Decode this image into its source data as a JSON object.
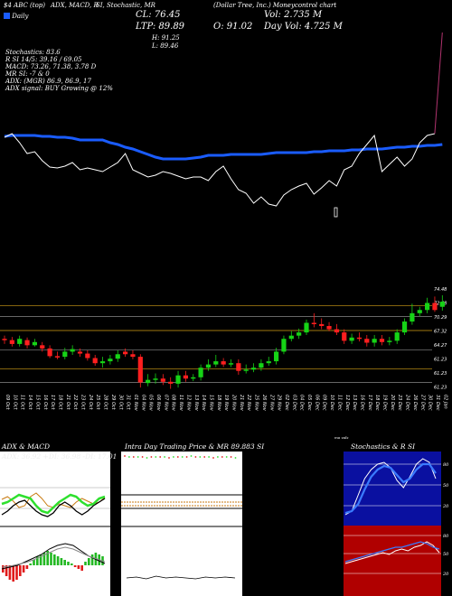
{
  "header": {
    "top_labels": [
      "$4 ABC (top)",
      "ADX, MACD, R",
      "SI, Stochastic, MR",
      "(Dollar Tree, Inc.) Moneycontrol chart"
    ],
    "box_prefix": "Daily",
    "cl": "CL: 76.45",
    "vol": "Vol: 2.735 M",
    "ltp": "LTP: 89.89",
    "open": "O: 91.02",
    "day_vol": "Day Vol: 4.725 M",
    "high": "H: 91.25",
    "low": "L: 89.46"
  },
  "indicators": [
    "Stochastics: 83.6",
    "R            SI 14/5: 39.16 / 69.05",
    "MACD: 73.26,  71.38,  3.78 D",
    "MR            SI: -7 & 0",
    "ADX:             (MGR) 86.9,  86.9,  17",
    "ADX  signal:                    BUY Growing @ 12%"
  ],
  "right_price_ticks": [
    "74.48",
    "72.48",
    "70.29",
    "67.32",
    "64.27",
    "61.23",
    "61.23",
    "61.23"
  ],
  "date_labels": [
    "09 Oct",
    "10 Oct",
    "11 Oct",
    "14 Oct",
    "15 Oct",
    "16 Oct",
    "17 Oct",
    "18 Oct",
    "21 Oct",
    "22 Oct",
    "23 Oct",
    "24 Oct",
    "25 Oct",
    "28 Oct",
    "29 Oct",
    "30 Oct",
    "31 Oct",
    "01 Nov",
    "04 Nov",
    "05 Nov",
    "06 Nov",
    "07 Nov",
    "08 Nov",
    "11 Nov",
    "12 Nov",
    "13 Nov",
    "14 Nov",
    "15 Nov",
    "18 Nov",
    "19 Nov",
    "20 Nov",
    "21 Nov",
    "22 Nov",
    "25 Nov",
    "26 Nov",
    "27 Nov",
    "29 Nov",
    "02 Dec",
    "03 Dec",
    "04 Dec",
    "05 Dec",
    "06 Dec",
    "09 Dec",
    "10 Dec",
    "11 Dec",
    "12 Dec",
    "13 Dec",
    "16 Dec",
    "17 Dec",
    "18 Dec",
    "19 Dec",
    "20 Dec",
    "23 Dec",
    "24 Dec",
    "26 Dec",
    "27 Dec",
    "30 Dec",
    "31 Dec",
    "02 Jan"
  ],
  "mini_note": "ma vals",
  "panels": {
    "adx": {
      "title": "ADX  & MACD",
      "values": "ADX: 36.92  +DI: 36.98  -DI: 17.01"
    },
    "intraday": {
      "title": "Intra Day Trading Price  &  MR   89.883   SI",
      "bottom_label": "0",
      "mid_label": "-7"
    },
    "stoch": {
      "title": "Stochastics & R          SI",
      "ticks_top": [
        "80",
        "50",
        "20"
      ],
      "ticks_bottom": [
        "80",
        "50",
        "20"
      ]
    }
  },
  "chart_data": [
    {
      "type": "line",
      "title": "",
      "series": [
        {
          "values": [
            151,
            150,
            150,
            150,
            150,
            151,
            151,
            152,
            152,
            153,
            155,
            155,
            155,
            155,
            158,
            160,
            163,
            165,
            168,
            171,
            174,
            176,
            176,
            176,
            176,
            175,
            174,
            172,
            172,
            172,
            171,
            171,
            171,
            171,
            171,
            170,
            169,
            169,
            169,
            169,
            169,
            168,
            168,
            167,
            167,
            167,
            166,
            166,
            165,
            165,
            165,
            164,
            163,
            163,
            162,
            162,
            161,
            161,
            160
          ]
        },
        {
          "values": [
            152,
            148,
            158,
            170,
            168,
            178,
            185,
            186,
            184,
            180,
            188,
            186,
            188,
            190,
            185,
            180,
            170,
            188,
            192,
            196,
            194,
            190,
            192,
            195,
            198,
            196,
            196,
            200,
            190,
            184,
            198,
            210,
            214,
            225,
            218,
            226,
            228,
            216,
            210,
            206,
            203,
            215,
            208,
            200,
            206,
            188,
            184,
            170,
            160,
            150,
            190,
            182,
            174,
            184,
            176,
            158,
            150,
            148,
            36
          ]
        }
      ]
    },
    {
      "type": "candlestick",
      "title": "",
      "x": [
        "09 Oct",
        "10 Oct",
        "11 Oct",
        "14 Oct",
        "15 Oct",
        "16 Oct",
        "17 Oct",
        "18 Oct",
        "21 Oct",
        "22 Oct",
        "23 Oct",
        "24 Oct",
        "25 Oct",
        "28 Oct",
        "29 Oct",
        "30 Oct",
        "31 Oct",
        "01 Nov",
        "04 Nov",
        "05 Nov",
        "06 Nov",
        "07 Nov",
        "08 Nov",
        "11 Nov",
        "12 Nov",
        "13 Nov",
        "14 Nov",
        "15 Nov",
        "18 Nov",
        "19 Nov",
        "20 Nov",
        "21 Nov",
        "22 Nov",
        "25 Nov",
        "26 Nov",
        "27 Nov",
        "29 Nov",
        "02 Dec",
        "03 Dec",
        "04 Dec",
        "05 Dec",
        "06 Dec",
        "09 Dec",
        "10 Dec",
        "11 Dec",
        "12 Dec",
        "13 Dec",
        "16 Dec",
        "17 Dec",
        "18 Dec",
        "19 Dec",
        "20 Dec",
        "23 Dec",
        "24 Dec",
        "26 Dec",
        "27 Dec",
        "30 Dec",
        "31 Dec",
        "02 Jan"
      ],
      "open": [
        69.0,
        68.8,
        68.2,
        68.8,
        68.0,
        68.0,
        67.5,
        66.3,
        66.2,
        67.0,
        67.0,
        66.7,
        66.0,
        65.2,
        65.5,
        65.9,
        67.0,
        66.6,
        66.2,
        62.1,
        62.6,
        62.8,
        62.3,
        62.0,
        63.3,
        62.8,
        63.0,
        64.5,
        65.0,
        65.5,
        65.0,
        65.2,
        64.0,
        64.2,
        64.5,
        65.2,
        65.5,
        67.0,
        69.0,
        69.5,
        70.0,
        71.5,
        71.3,
        71.0,
        70.5,
        70.0,
        68.7,
        69.2,
        69.0,
        68.4,
        69.0,
        68.5,
        68.7,
        70.0,
        71.7,
        73.0,
        73.5,
        74.6,
        74.0
      ],
      "close": [
        68.8,
        68.2,
        69.0,
        68.0,
        68.5,
        67.5,
        66.3,
        66.2,
        67.0,
        67.4,
        66.7,
        66.0,
        65.2,
        65.5,
        65.9,
        66.6,
        66.6,
        66.2,
        62.2,
        62.6,
        62.8,
        62.3,
        62.0,
        63.3,
        62.8,
        63.0,
        64.5,
        65.0,
        65.5,
        65.0,
        65.2,
        64.0,
        64.2,
        64.5,
        65.2,
        65.5,
        67.0,
        69.0,
        69.5,
        70.0,
        71.5,
        71.3,
        71.0,
        70.5,
        70.0,
        68.7,
        69.2,
        69.0,
        68.4,
        69.0,
        68.5,
        68.7,
        70.0,
        71.7,
        73.0,
        73.5,
        74.6,
        73.5,
        74.8
      ],
      "high": [
        69.5,
        69.3,
        69.5,
        69.2,
        69.0,
        68.5,
        68.0,
        67.0,
        67.6,
        68.0,
        67.5,
        67.2,
        66.5,
        66.2,
        66.5,
        67.2,
        67.5,
        67.2,
        66.6,
        63.5,
        63.6,
        63.5,
        63.0,
        64.0,
        64.0,
        63.5,
        65.0,
        65.8,
        66.5,
        66.0,
        65.8,
        65.8,
        65.0,
        65.2,
        65.8,
        66.2,
        67.6,
        69.5,
        70.2,
        70.6,
        72.0,
        73.0,
        72.2,
        71.6,
        71.3,
        70.5,
        69.8,
        70.0,
        69.6,
        69.6,
        69.6,
        69.3,
        70.5,
        72.2,
        74.5,
        74.0,
        75.4,
        75.6,
        75.8
      ],
      "low": [
        68.2,
        67.8,
        67.8,
        67.5,
        67.8,
        67.0,
        66.0,
        65.8,
        65.8,
        66.5,
        66.2,
        65.6,
        64.8,
        64.5,
        65.0,
        65.4,
        66.2,
        65.8,
        61.4,
        61.6,
        62.0,
        61.8,
        61.2,
        61.4,
        62.3,
        62.4,
        62.5,
        64.0,
        64.6,
        64.6,
        64.6,
        63.4,
        63.6,
        63.8,
        64.0,
        64.8,
        65.0,
        66.6,
        68.6,
        69.0,
        69.6,
        70.8,
        70.5,
        70.2,
        69.6,
        68.2,
        68.2,
        68.6,
        67.8,
        67.8,
        68.0,
        68.0,
        68.2,
        69.6,
        71.2,
        72.5,
        73.0,
        73.2,
        73.4
      ],
      "ylim": [
        61.0,
        76.5
      ]
    }
  ],
  "colors": {
    "up": "#16d316",
    "down": "#ff1f1f",
    "ma": "#1a5cff",
    "price_line": "#ffffff",
    "level": "#d4a017"
  }
}
